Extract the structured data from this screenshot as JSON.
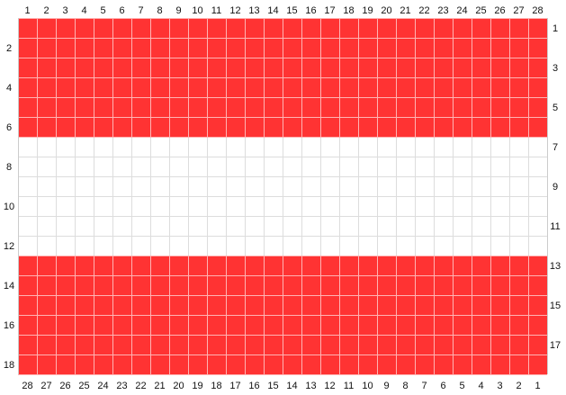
{
  "chart_data": {
    "type": "heatmap",
    "columns": 28,
    "rows": 18,
    "top_labels": [
      "1",
      "2",
      "3",
      "4",
      "5",
      "6",
      "7",
      "8",
      "9",
      "10",
      "11",
      "12",
      "13",
      "14",
      "15",
      "16",
      "17",
      "18",
      "19",
      "20",
      "21",
      "22",
      "23",
      "24",
      "25",
      "26",
      "27",
      "28"
    ],
    "bottom_labels": [
      "28",
      "27",
      "26",
      "25",
      "24",
      "23",
      "22",
      "21",
      "20",
      "19",
      "18",
      "17",
      "16",
      "15",
      "14",
      "13",
      "12",
      "11",
      "10",
      "9",
      "8",
      "7",
      "6",
      "5",
      "4",
      "3",
      "2",
      "1"
    ],
    "left_labels": [
      "2",
      "4",
      "6",
      "8",
      "10",
      "12",
      "14",
      "16",
      "18"
    ],
    "right_labels": [
      "1",
      "3",
      "5",
      "7",
      "9",
      "11",
      "13",
      "15",
      "17"
    ],
    "row_colors": [
      "red",
      "red",
      "red",
      "red",
      "red",
      "red",
      "white",
      "white",
      "white",
      "white",
      "white",
      "white",
      "red",
      "red",
      "red",
      "red",
      "red",
      "red"
    ],
    "colors": {
      "red": "#ff3333",
      "white": "#ffffff",
      "grid_on_red": "#ffb3b3",
      "grid_on_white": "#dddddd"
    }
  }
}
